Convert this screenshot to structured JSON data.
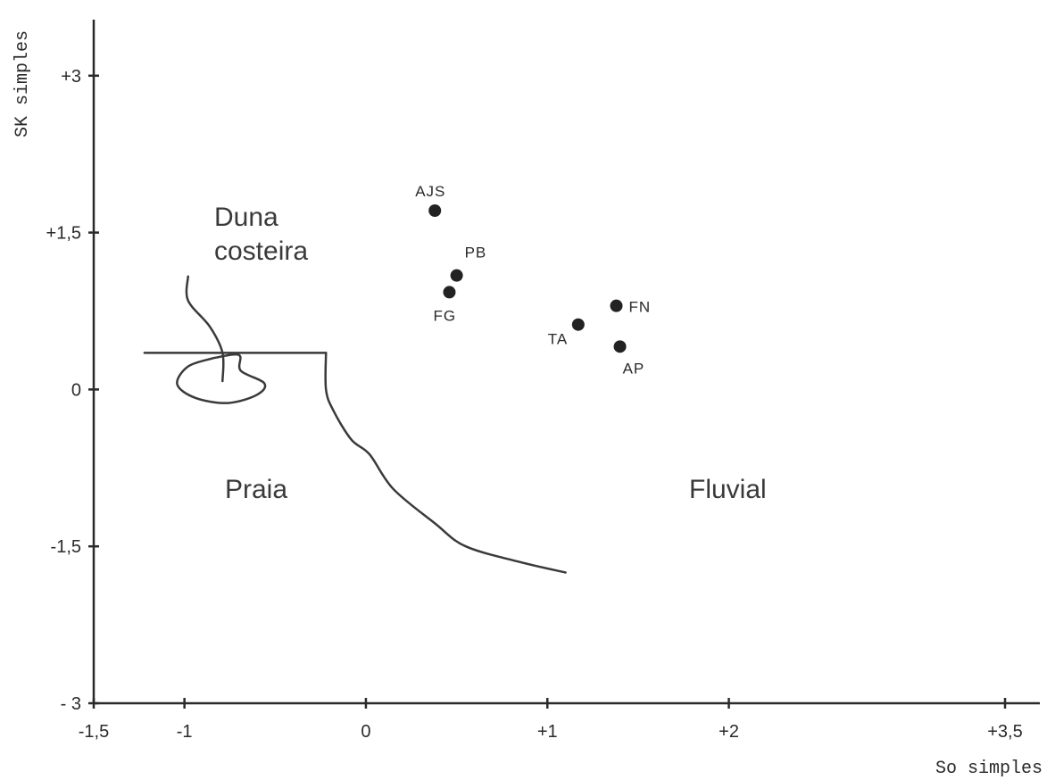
{
  "chart_data": {
    "type": "scatter",
    "xlabel": "So simples",
    "ylabel": "SK simples",
    "xlim": [
      -1.5,
      3.5
    ],
    "ylim": [
      -3,
      3.5
    ],
    "x_ticks": [
      {
        "value": -1.5,
        "label": "-1,5"
      },
      {
        "value": -1,
        "label": "-1"
      },
      {
        "value": 0,
        "label": "0"
      },
      {
        "value": 1,
        "label": "+1"
      },
      {
        "value": 2,
        "label": "+2"
      },
      {
        "value": 3.5,
        "label": "+3,5"
      }
    ],
    "y_ticks": [
      {
        "value": 3,
        "label": "+3"
      },
      {
        "value": 1.5,
        "label": "+1,5"
      },
      {
        "value": 0,
        "label": "0"
      },
      {
        "value": -1.5,
        "label": "-1,5"
      },
      {
        "value": -3,
        "label": "- 3"
      }
    ],
    "points": [
      {
        "label": "AJS",
        "x": 0.38,
        "y": 1.71
      },
      {
        "label": "PB",
        "x": 0.5,
        "y": 1.09
      },
      {
        "label": "FG",
        "x": 0.46,
        "y": 0.93
      },
      {
        "label": "FN",
        "x": 1.38,
        "y": 0.8
      },
      {
        "label": "TA",
        "x": 1.17,
        "y": 0.62
      },
      {
        "label": "AP",
        "x": 1.4,
        "y": 0.41
      }
    ],
    "region_labels": [
      "Duna costeira",
      "Praia",
      "Fluvial"
    ],
    "boundaries": {
      "horizontal": [
        [
          -1.22,
          0.35
        ],
        [
          -0.22,
          0.35
        ]
      ],
      "fluvial_curve": [
        [
          -0.22,
          0.35
        ],
        [
          -0.22,
          0.0
        ],
        [
          -0.18,
          -0.2
        ],
        [
          -0.08,
          -0.48
        ],
        [
          0.02,
          -0.62
        ],
        [
          0.15,
          -0.95
        ],
        [
          0.38,
          -1.28
        ],
        [
          0.55,
          -1.5
        ],
        [
          0.85,
          -1.65
        ],
        [
          1.1,
          -1.75
        ]
      ],
      "dune_line": [
        [
          -0.98,
          1.08
        ],
        [
          -0.98,
          0.85
        ],
        [
          -0.86,
          0.6
        ],
        [
          -0.79,
          0.35
        ],
        [
          -0.79,
          0.08
        ]
      ],
      "dune_loop": [
        [
          -0.84,
          0.3
        ],
        [
          -0.98,
          0.22
        ],
        [
          -1.04,
          0.05
        ],
        [
          -0.94,
          -0.08
        ],
        [
          -0.76,
          -0.13
        ],
        [
          -0.6,
          -0.05
        ],
        [
          -0.56,
          0.06
        ],
        [
          -0.69,
          0.18
        ],
        [
          -0.7,
          0.33
        ],
        [
          -0.84,
          0.3
        ]
      ]
    }
  }
}
